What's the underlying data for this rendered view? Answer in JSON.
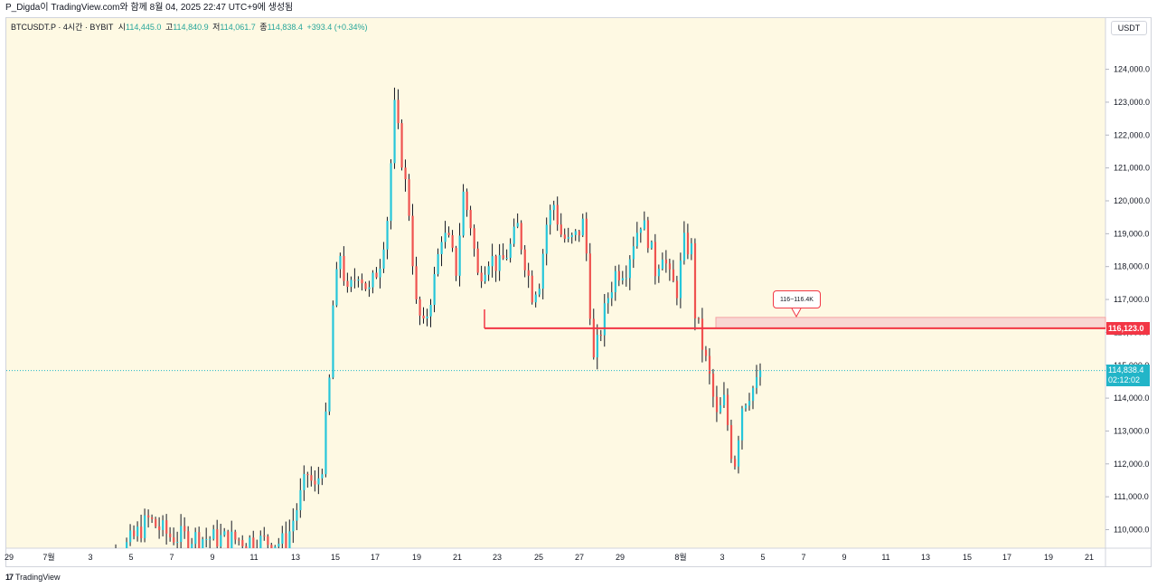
{
  "header": {
    "caption": "P_Digda이 TradingView.com와 함께 8월 04, 2025 22:47 UTC+9에 생성됨"
  },
  "legend": {
    "symbol": "BTCUSDT.P · 4시간 · BYBIT",
    "open_label": "시",
    "open": "114,445.0",
    "high_label": "고",
    "high": "114,840.9",
    "low_label": "저",
    "low": "114,061.7",
    "close_label": "종",
    "close": "114,838.4",
    "change": "+393.4 (+0.34%)"
  },
  "price_axis": {
    "unit": "USDT",
    "level_tag": "116,123.0",
    "last_price_tag": "114,838.4",
    "countdown": "02:12:02"
  },
  "annotation": {
    "zone_label": "116~116.4K"
  },
  "footer": {
    "brand": "TradingView",
    "logo_mark": "17"
  },
  "colors": {
    "background": "#fef9e3",
    "up": "#26c6da",
    "down": "#ef5350",
    "level": "#f23645",
    "zone_fill": "#f8d7d3",
    "last_price": "#22b5c8"
  },
  "chart_data": {
    "type": "candlestick",
    "symbol": "BTCUSDT.P",
    "timeframe": "4시간",
    "exchange": "BYBIT",
    "y_ticks": [
      110000,
      111000,
      112000,
      113000,
      114000,
      115000,
      116000,
      117000,
      118000,
      119000,
      120000,
      121000,
      122000,
      123000,
      124000
    ],
    "y_tick_labels": [
      "110,000.0",
      "111,000.0",
      "112,000.0",
      "113,000.0",
      "114,000.0",
      "115,000.0",
      "116,000.0",
      "117,000.0",
      "118,000.0",
      "119,000.0",
      "120,000.0",
      "121,000.0",
      "122,000.0",
      "123,000.0",
      "124,000.0"
    ],
    "x_tick_labels": [
      "29",
      "7월",
      "3",
      "5",
      "7",
      "9",
      "11",
      "13",
      "15",
      "17",
      "19",
      "21",
      "23",
      "25",
      "27",
      "29",
      "8월",
      "3",
      "5",
      "7",
      "9",
      "11",
      "13",
      "15",
      "17",
      "19",
      "21"
    ],
    "horizontal_level": 116123.0,
    "zone": [
      116123.0,
      116400.0
    ],
    "last_price": 114838.4,
    "anchors": [
      {
        "i": 0,
        "price": 108600
      },
      {
        "i": 10,
        "price": 109500
      },
      {
        "i": 16,
        "price": 110300
      },
      {
        "i": 22,
        "price": 109800
      },
      {
        "i": 40,
        "price": 109700
      },
      {
        "i": 54,
        "price": 109600
      },
      {
        "i": 60,
        "price": 111700
      },
      {
        "i": 62,
        "price": 111200
      },
      {
        "i": 64,
        "price": 112000
      },
      {
        "i": 66,
        "price": 114500
      },
      {
        "i": 67,
        "price": 116800
      },
      {
        "i": 69,
        "price": 118400
      },
      {
        "i": 71,
        "price": 117100
      },
      {
        "i": 74,
        "price": 117900
      },
      {
        "i": 77,
        "price": 117200
      },
      {
        "i": 80,
        "price": 118200
      },
      {
        "i": 82,
        "price": 119500
      },
      {
        "i": 84,
        "price": 122800
      },
      {
        "i": 86,
        "price": 121300
      },
      {
        "i": 88,
        "price": 119700
      },
      {
        "i": 90,
        "price": 116800
      },
      {
        "i": 92,
        "price": 116100
      },
      {
        "i": 95,
        "price": 117600
      },
      {
        "i": 97,
        "price": 119000
      },
      {
        "i": 99,
        "price": 118700
      },
      {
        "i": 101,
        "price": 117900
      },
      {
        "i": 103,
        "price": 120200
      },
      {
        "i": 105,
        "price": 119300
      },
      {
        "i": 107,
        "price": 117700
      },
      {
        "i": 110,
        "price": 118300
      },
      {
        "i": 113,
        "price": 118000
      },
      {
        "i": 116,
        "price": 118600
      },
      {
        "i": 118,
        "price": 119200
      },
      {
        "i": 120,
        "price": 118200
      },
      {
        "i": 122,
        "price": 117200
      },
      {
        "i": 124,
        "price": 117600
      },
      {
        "i": 126,
        "price": 119300
      },
      {
        "i": 128,
        "price": 119900
      },
      {
        "i": 130,
        "price": 119000
      },
      {
        "i": 132,
        "price": 118700
      },
      {
        "i": 134,
        "price": 118900
      },
      {
        "i": 136,
        "price": 119300
      },
      {
        "i": 137,
        "price": 118400
      },
      {
        "i": 139,
        "price": 115100
      },
      {
        "i": 141,
        "price": 116100
      },
      {
        "i": 143,
        "price": 117100
      },
      {
        "i": 145,
        "price": 117800
      },
      {
        "i": 148,
        "price": 118000
      },
      {
        "i": 150,
        "price": 118800
      },
      {
        "i": 152,
        "price": 119400
      },
      {
        "i": 154,
        "price": 118900
      },
      {
        "i": 156,
        "price": 117900
      },
      {
        "i": 158,
        "price": 118500
      },
      {
        "i": 160,
        "price": 117600
      },
      {
        "i": 162,
        "price": 117300
      },
      {
        "i": 164,
        "price": 118700
      },
      {
        "i": 166,
        "price": 118500
      },
      {
        "i": 167,
        "price": 116600
      },
      {
        "i": 169,
        "price": 115600
      },
      {
        "i": 171,
        "price": 114600
      },
      {
        "i": 173,
        "price": 113400
      },
      {
        "i": 175,
        "price": 113900
      },
      {
        "i": 176,
        "price": 113200
      },
      {
        "i": 177,
        "price": 112400
      },
      {
        "i": 178,
        "price": 112100
      },
      {
        "i": 180,
        "price": 113800
      },
      {
        "i": 182,
        "price": 114200
      },
      {
        "i": 184,
        "price": 114400
      },
      {
        "i": 185,
        "price": 114838
      }
    ]
  }
}
